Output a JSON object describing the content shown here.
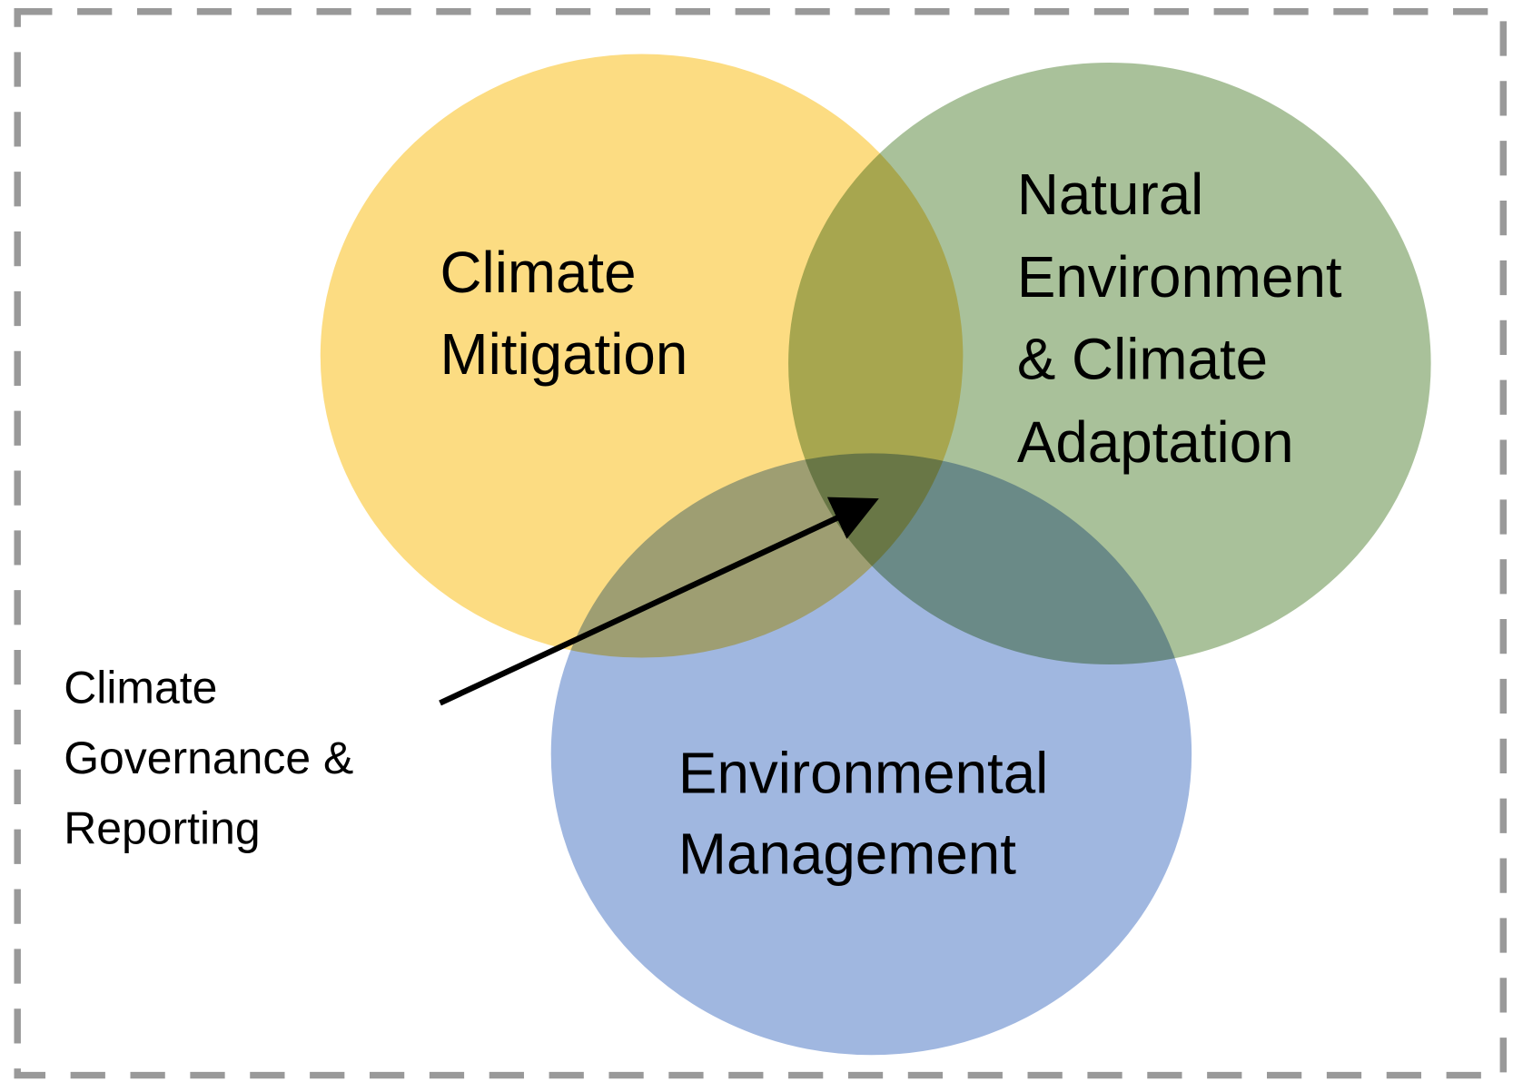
{
  "circles": [
    {
      "label": [
        "Climate",
        "Mitigation"
      ]
    },
    {
      "label": [
        "Natural",
        "Environment",
        "& Climate",
        "Adaptation"
      ]
    },
    {
      "label": [
        "Environmental",
        "Management"
      ]
    }
  ],
  "intersection": {
    "label": [
      "Climate",
      "Governance &",
      "Reporting"
    ]
  }
}
